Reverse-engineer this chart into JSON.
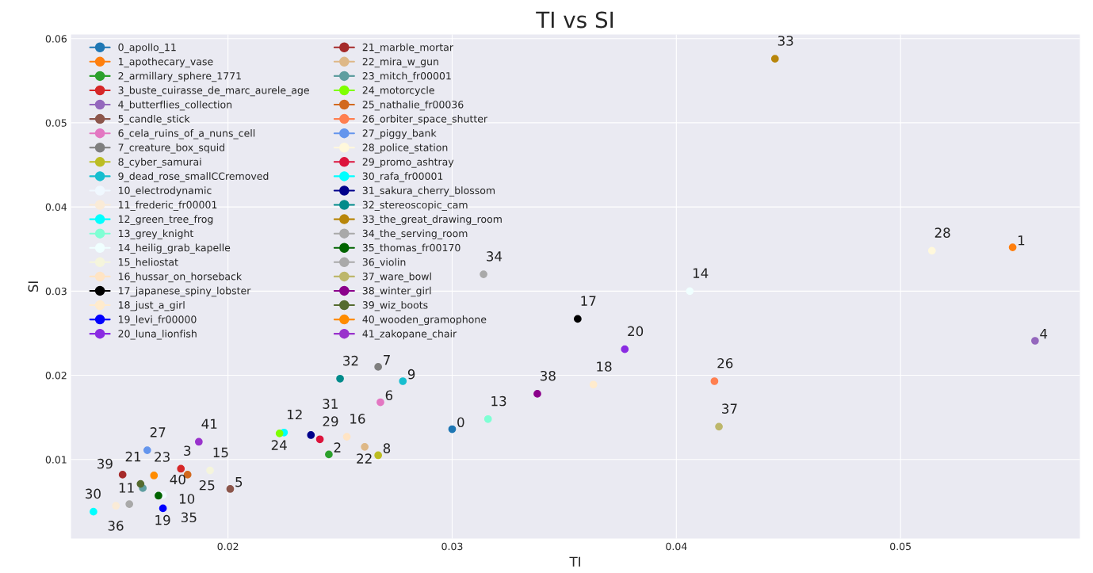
{
  "chart_data": {
    "type": "scatter",
    "title": "TI vs SI",
    "xlabel": "TI",
    "ylabel": "SI",
    "xlim": [
      0.013,
      0.058
    ],
    "ylim": [
      0.0006,
      0.0605
    ],
    "xticks": [
      0.02,
      0.03,
      0.04,
      0.05
    ],
    "yticks": [
      0.01,
      0.02,
      0.03,
      0.04,
      0.05,
      0.06
    ],
    "grid": true,
    "legend": "top left",
    "marker": "circle",
    "series": [
      {
        "name": "0_apollo_11",
        "color": "#1f77b4",
        "x": [
          0.03
        ],
        "values": [
          0.0136
        ]
      },
      {
        "name": "1_apothecary_vase",
        "color": "#ff7f0e",
        "x": [
          0.055
        ],
        "values": [
          0.0352
        ]
      },
      {
        "name": "2_armillary_sphere_1771",
        "color": "#2ca02c",
        "x": [
          0.0245
        ],
        "values": [
          0.0106
        ]
      },
      {
        "name": "3_buste_cuirasse_de_marc_aurele_age",
        "color": "#d62728",
        "x": [
          0.0179
        ],
        "values": [
          0.0089
        ]
      },
      {
        "name": "4_butterflies_collection",
        "color": "#9467bd",
        "x": [
          0.056
        ],
        "values": [
          0.0241
        ]
      },
      {
        "name": "5_candle_stick",
        "color": "#8c564b",
        "x": [
          0.0201
        ],
        "values": [
          0.0065
        ]
      },
      {
        "name": "6_cela_ruins_of_a_nuns_cell",
        "color": "#e377c2",
        "x": [
          0.0268
        ],
        "values": [
          0.0168
        ]
      },
      {
        "name": "7_creature_box_squid",
        "color": "#7f7f7f",
        "x": [
          0.0267
        ],
        "values": [
          0.021
        ]
      },
      {
        "name": "8_cyber_samurai",
        "color": "#bcbd22",
        "x": [
          0.0267
        ],
        "values": [
          0.0105
        ]
      },
      {
        "name": "9_dead_rose_smallCCremoved",
        "color": "#17becf",
        "x": [
          0.0278
        ],
        "values": [
          0.0193
        ]
      },
      {
        "name": "10_electrodynamic",
        "color": "#f0f8ff",
        "x": [
          0.0171
        ],
        "values": [
          0.0058
        ]
      },
      {
        "name": "11_frederic_fr00001",
        "color": "#faebd7",
        "x": [
          0.015
        ],
        "values": [
          0.0045
        ]
      },
      {
        "name": "12_green_tree_frog",
        "color": "#00ffff",
        "x": [
          0.0225
        ],
        "values": [
          0.0132
        ]
      },
      {
        "name": "13_grey_knight",
        "color": "#7fffd4",
        "x": [
          0.0316
        ],
        "values": [
          0.0148
        ]
      },
      {
        "name": "14_heilig_grab_kapelle",
        "color": "#f0ffff",
        "x": [
          0.0406
        ],
        "values": [
          0.03
        ]
      },
      {
        "name": "15_heliostat",
        "color": "#f5f5dc",
        "x": [
          0.0192
        ],
        "values": [
          0.0087
        ]
      },
      {
        "name": "16_hussar_on_horseback",
        "color": "#ffe4c4",
        "x": [
          0.0253
        ],
        "values": [
          0.0127
        ]
      },
      {
        "name": "17_japanese_spiny_lobster",
        "color": "#000000",
        "x": [
          0.0356
        ],
        "values": [
          0.0267
        ]
      },
      {
        "name": "18_just_a_girl",
        "color": "#ffebcd",
        "x": [
          0.0363
        ],
        "values": [
          0.0189
        ]
      },
      {
        "name": "19_levi_fr00000",
        "color": "#0000ff",
        "x": [
          0.0171
        ],
        "values": [
          0.0042
        ]
      },
      {
        "name": "20_luna_lionfish",
        "color": "#8a2be2",
        "x": [
          0.0377
        ],
        "values": [
          0.0231
        ]
      },
      {
        "name": "21_marble_mortar",
        "color": "#a52a2a",
        "x": [
          0.0153
        ],
        "values": [
          0.0082
        ]
      },
      {
        "name": "22_mira_w_gun",
        "color": "#deb887",
        "x": [
          0.0261
        ],
        "values": [
          0.0115
        ]
      },
      {
        "name": "23_mitch_fr00001",
        "color": "#5f9ea0",
        "x": [
          0.0162
        ],
        "values": [
          0.0066
        ]
      },
      {
        "name": "24_motorcycle",
        "color": "#7fff00",
        "x": [
          0.0223
        ],
        "values": [
          0.0131
        ]
      },
      {
        "name": "25_nathalie_fr00036",
        "color": "#d2691e",
        "x": [
          0.0182
        ],
        "values": [
          0.0082
        ]
      },
      {
        "name": "26_orbiter_space_shutter",
        "color": "#ff7f50",
        "x": [
          0.0417
        ],
        "values": [
          0.0193
        ]
      },
      {
        "name": "27_piggy_bank",
        "color": "#6495ed",
        "x": [
          0.0164
        ],
        "values": [
          0.0111
        ]
      },
      {
        "name": "28_police_station",
        "color": "#fff8dc",
        "x": [
          0.0514
        ],
        "values": [
          0.0348
        ]
      },
      {
        "name": "29_promo_ashtray",
        "color": "#dc143c",
        "x": [
          0.0241
        ],
        "values": [
          0.0124
        ]
      },
      {
        "name": "30_rafa_fr00001",
        "color": "#00ffff",
        "x": [
          0.014
        ],
        "values": [
          0.0038
        ]
      },
      {
        "name": "31_sakura_cherry_blossom",
        "color": "#00008b",
        "x": [
          0.0237
        ],
        "values": [
          0.0129
        ]
      },
      {
        "name": "32_stereoscopic_cam",
        "color": "#008b8b",
        "x": [
          0.025
        ],
        "values": [
          0.0196
        ]
      },
      {
        "name": "33_the_great_drawing_room",
        "color": "#b8860b",
        "x": [
          0.0444
        ],
        "values": [
          0.0576
        ]
      },
      {
        "name": "34_the_serving_room",
        "color": "#a9a9a9",
        "x": [
          0.0314
        ],
        "values": [
          0.032
        ]
      },
      {
        "name": "35_thomas_fr00170",
        "color": "#006400",
        "x": [
          0.0169
        ],
        "values": [
          0.0057
        ]
      },
      {
        "name": "36_violin",
        "color": "#a9a9a9",
        "x": [
          0.0156
        ],
        "values": [
          0.0047
        ]
      },
      {
        "name": "37_ware_bowl",
        "color": "#bdb76b",
        "x": [
          0.0419
        ],
        "values": [
          0.0139
        ]
      },
      {
        "name": "38_winter_girl",
        "color": "#8b008b",
        "x": [
          0.0338
        ],
        "values": [
          0.0178
        ]
      },
      {
        "name": "39_wiz_boots",
        "color": "#556b2f",
        "x": [
          0.0161
        ],
        "values": [
          0.0071
        ]
      },
      {
        "name": "40_wooden_gramophone",
        "color": "#ff8c00",
        "x": [
          0.0167
        ],
        "values": [
          0.0081
        ]
      },
      {
        "name": "41_zakopane_chair",
        "color": "#9932cc",
        "x": [
          0.0187
        ],
        "values": [
          0.0121
        ]
      }
    ],
    "annotations": [
      {
        "text": "0",
        "x": 0.03,
        "y": 0.0136
      },
      {
        "text": "1",
        "x": 0.055,
        "y": 0.0352
      },
      {
        "text": "2",
        "x": 0.0245,
        "y": 0.0106
      },
      {
        "text": "3",
        "x": 0.0179,
        "y": 0.0089
      },
      {
        "text": "4",
        "x": 0.056,
        "y": 0.0241
      },
      {
        "text": "5",
        "x": 0.0201,
        "y": 0.0065
      },
      {
        "text": "6",
        "x": 0.0268,
        "y": 0.0168
      },
      {
        "text": "7",
        "x": 0.0267,
        "y": 0.021
      },
      {
        "text": "8",
        "x": 0.0267,
        "y": 0.0105
      },
      {
        "text": "9",
        "x": 0.0278,
        "y": 0.0193
      },
      {
        "text": "10",
        "x": 0.0171,
        "y": 0.0058
      },
      {
        "text": "11",
        "x": 0.015,
        "y": 0.0045
      },
      {
        "text": "12",
        "x": 0.0225,
        "y": 0.0132
      },
      {
        "text": "13",
        "x": 0.0316,
        "y": 0.0148
      },
      {
        "text": "14",
        "x": 0.0406,
        "y": 0.03
      },
      {
        "text": "15",
        "x": 0.0192,
        "y": 0.0087
      },
      {
        "text": "16",
        "x": 0.0253,
        "y": 0.0127
      },
      {
        "text": "17",
        "x": 0.0356,
        "y": 0.0267
      },
      {
        "text": "18",
        "x": 0.0363,
        "y": 0.0189
      },
      {
        "text": "19",
        "x": 0.0171,
        "y": 0.0042
      },
      {
        "text": "20",
        "x": 0.0377,
        "y": 0.0231
      },
      {
        "text": "21",
        "x": 0.0153,
        "y": 0.0082
      },
      {
        "text": "22",
        "x": 0.0261,
        "y": 0.0115
      },
      {
        "text": "23",
        "x": 0.0162,
        "y": 0.0066
      },
      {
        "text": "24",
        "x": 0.0223,
        "y": 0.0131
      },
      {
        "text": "25",
        "x": 0.0182,
        "y": 0.0082
      },
      {
        "text": "26",
        "x": 0.0417,
        "y": 0.0193
      },
      {
        "text": "27",
        "x": 0.0164,
        "y": 0.0111
      },
      {
        "text": "28",
        "x": 0.0514,
        "y": 0.0348
      },
      {
        "text": "29",
        "x": 0.0241,
        "y": 0.0124
      },
      {
        "text": "30",
        "x": 0.014,
        "y": 0.0038
      },
      {
        "text": "31",
        "x": 0.0237,
        "y": 0.0129
      },
      {
        "text": "32",
        "x": 0.025,
        "y": 0.0196
      },
      {
        "text": "33",
        "x": 0.0444,
        "y": 0.0576
      },
      {
        "text": "34",
        "x": 0.0314,
        "y": 0.032
      },
      {
        "text": "35",
        "x": 0.0169,
        "y": 0.0057
      },
      {
        "text": "36",
        "x": 0.0156,
        "y": 0.0047
      },
      {
        "text": "37",
        "x": 0.0419,
        "y": 0.0139
      },
      {
        "text": "38",
        "x": 0.0338,
        "y": 0.0178
      },
      {
        "text": "39",
        "x": 0.0161,
        "y": 0.0071
      },
      {
        "text": "40",
        "x": 0.0167,
        "y": 0.0081
      },
      {
        "text": "41",
        "x": 0.0187,
        "y": 0.0121
      }
    ]
  }
}
